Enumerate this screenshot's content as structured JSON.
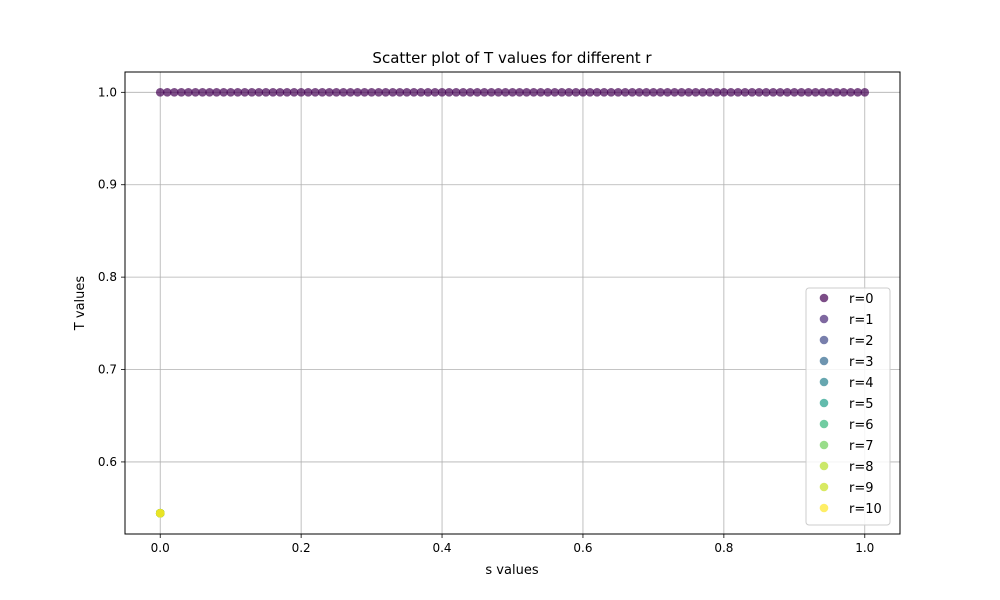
{
  "chart_data": {
    "type": "scatter",
    "title": "Scatter plot of T values for different r",
    "xlabel": "s values",
    "ylabel": "T values",
    "xlim": [
      -0.05,
      1.05
    ],
    "ylim": [
      0.522,
      1.022
    ],
    "xticks": [
      0.0,
      0.2,
      0.4,
      0.6,
      0.8,
      1.0
    ],
    "xtick_labels": [
      "0.0",
      "0.2",
      "0.4",
      "0.6",
      "0.8",
      "1.0"
    ],
    "yticks": [
      0.6,
      0.7,
      0.8,
      0.9,
      1.0
    ],
    "ytick_labels": [
      "0.6",
      "0.7",
      "0.8",
      "0.9",
      "1.0"
    ],
    "grid": true,
    "legend_position": "lower-right",
    "marker_alpha": 0.7,
    "series": [
      {
        "name": "r=0",
        "color": "#440154",
        "x_range": {
          "start": 0.0,
          "stop": 1.0,
          "count": 101
        },
        "y_constant": 1.0
      },
      {
        "name": "r=1",
        "color": "#482878",
        "x": [
          0.0
        ],
        "y": [
          0.5445
        ]
      },
      {
        "name": "r=2",
        "color": "#3e4989",
        "x": [
          0.0
        ],
        "y": [
          0.5445
        ]
      },
      {
        "name": "r=3",
        "color": "#31688e",
        "x": [
          0.0
        ],
        "y": [
          0.5445
        ]
      },
      {
        "name": "r=4",
        "color": "#26828e",
        "x": [
          0.0
        ],
        "y": [
          0.5445
        ]
      },
      {
        "name": "r=5",
        "color": "#1f9e89",
        "x": [
          0.0
        ],
        "y": [
          0.5445
        ]
      },
      {
        "name": "r=6",
        "color": "#35b779",
        "x": [
          0.0
        ],
        "y": [
          0.5445
        ]
      },
      {
        "name": "r=7",
        "color": "#6ece58",
        "x": [
          0.0
        ],
        "y": [
          0.5445
        ]
      },
      {
        "name": "r=8",
        "color": "#b5de2b",
        "x": [
          0.0
        ],
        "y": [
          0.5445
        ]
      },
      {
        "name": "r=9",
        "color": "#c8e020",
        "x": [
          0.0
        ],
        "y": [
          0.5445
        ]
      },
      {
        "name": "r=10",
        "color": "#fde725",
        "x": [
          0.0
        ],
        "y": [
          0.5445
        ]
      }
    ]
  }
}
